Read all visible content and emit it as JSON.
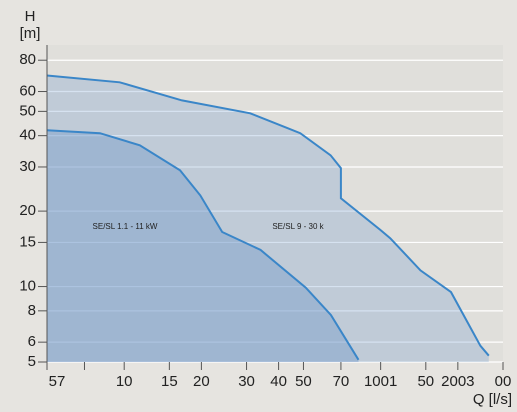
{
  "chart_data": {
    "type": "line",
    "y_label": "H",
    "y_unit": "[m]",
    "x_label": "Q [l/s]",
    "log_x": true,
    "log_y": true,
    "grid": true,
    "xlim": [
      5,
      300
    ],
    "ylim": [
      5,
      92
    ],
    "xticks": [
      {
        "value": 5,
        "label": "57"
      },
      {
        "value": 7,
        "label": null
      },
      10,
      15,
      20,
      30,
      40,
      50,
      70,
      {
        "value": 100,
        "label": "1001"
      },
      {
        "value": 150,
        "label": "50"
      },
      {
        "value": 200,
        "label": "2003"
      },
      {
        "value": 300,
        "label": "00"
      }
    ],
    "yticks": [
      5,
      6,
      8,
      10,
      15,
      20,
      30,
      40,
      50,
      60,
      80
    ],
    "annotations": [
      "SE/SL 1.1 - 11 kW",
      "SE/SL 9 - 30 k"
    ],
    "series": [
      {
        "color": "#3a86c8",
        "fill": "rgba(120,160,205,0.30)",
        "x": [
          5,
          9.6,
          16.8,
          31,
          48.6,
          63.8,
          70,
          70,
          100,
          109,
          143,
          188,
          245,
          264
        ],
        "values": [
          69.5,
          65.3,
          55.3,
          49.1,
          40.9,
          33.4,
          29.7,
          22.5,
          16.8,
          15.6,
          11.6,
          9.5,
          5.8,
          5.3
        ]
      },
      {
        "color": "#3a86c8",
        "fill": "rgba(110,150,200,0.40)",
        "x": [
          5,
          8.05,
          11.5,
          16.5,
          19.8,
          24.1,
          34,
          51,
          64,
          82
        ],
        "values": [
          42,
          40.9,
          36.6,
          29.1,
          23.1,
          16.5,
          14,
          9.9,
          7.7,
          5.1
        ]
      }
    ]
  }
}
